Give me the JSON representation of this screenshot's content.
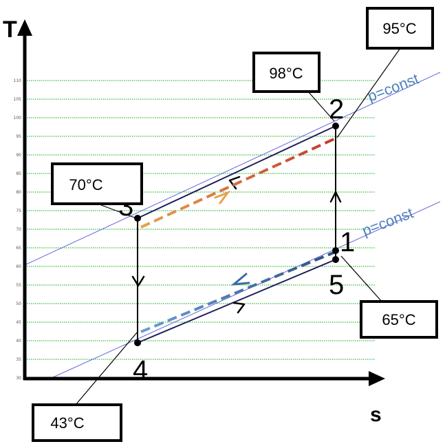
{
  "axes": {
    "y_label": "T",
    "x_label": "s",
    "y_ticks": [
      "110",
      "105",
      "100",
      "95",
      "90",
      "85",
      "80",
      "75",
      "70",
      "65",
      "60",
      "55",
      "50",
      "45",
      "40",
      "35",
      "30"
    ]
  },
  "isobar_labels": [
    "p=const",
    "p=const"
  ],
  "points": {
    "p1": "1",
    "p2": "2",
    "p3": "3",
    "p4": "4",
    "p5": "5"
  },
  "callouts": {
    "t95": "95°C",
    "t98": "98°C",
    "t70": "70°C",
    "t65": "65°C",
    "t43": "43°C"
  },
  "colors": {
    "cycle": "#1f1f5c",
    "isobar": "#6666dd",
    "gridline": "#00aa00",
    "hot_stream_start": "#e8a050",
    "hot_stream_end": "#c0392b",
    "cold_stream_start": "#6a9fd8",
    "cold_stream_end": "#2c4f7c"
  }
}
